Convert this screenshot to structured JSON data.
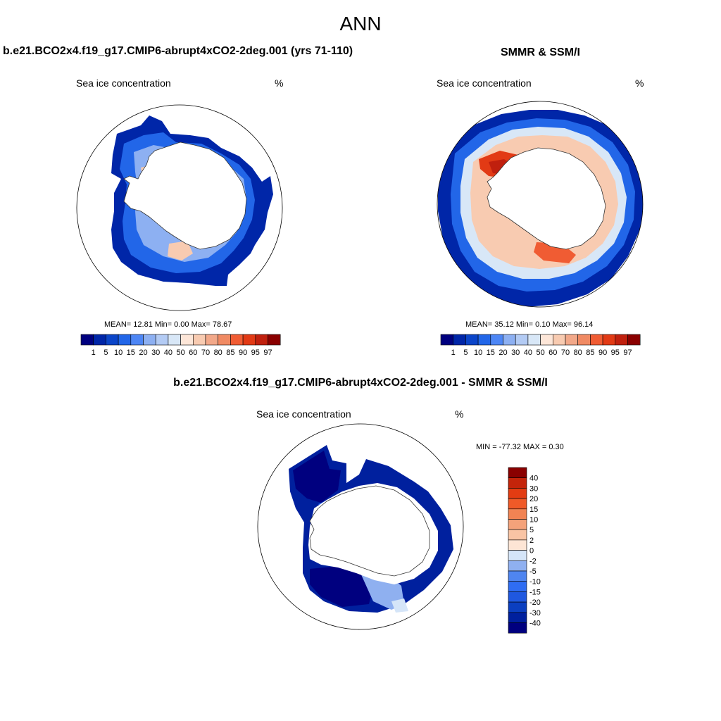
{
  "main_title": "ANN",
  "palette": {
    "seq": [
      "#00007f",
      "#0026a8",
      "#0b45c9",
      "#2266e8",
      "#4d86f5",
      "#8db0f2",
      "#b3cbf4",
      "#d8e7f7",
      "#fde6d8",
      "#f8cbb1",
      "#f2a889",
      "#f08a63",
      "#f05c33",
      "#e23a15",
      "#c0200e",
      "#8a0000"
    ],
    "diff": [
      "#00007f",
      "#00209e",
      "#0b3fc0",
      "#1f58e0",
      "#2f6df3",
      "#4f85f0",
      "#8fb0f0",
      "#d5e5f8",
      "#fde5d5",
      "#f9c4a4",
      "#f4a27a",
      "#f18353",
      "#f05a28",
      "#e33c12",
      "#c4240a",
      "#8a0000"
    ]
  },
  "panels": [
    {
      "id": "model",
      "case_title": "b.e21.BCO2x4.f19_g17.CMIP6-abrupt4xCO2-2deg.001 (yrs 71-110)",
      "variable": "Sea ice concentration",
      "units": "%",
      "stats": {
        "mean_label": "MEAN=",
        "mean": "12.81",
        "min_label": "Min=",
        "min": "0.00",
        "max_label": "Max=",
        "max": "78.67"
      },
      "colorbar_labels": [
        "1",
        "5",
        "10",
        "15",
        "20",
        "30",
        "40",
        "50",
        "60",
        "70",
        "80",
        "85",
        "90",
        "95",
        "97"
      ]
    },
    {
      "id": "obs",
      "case_title": "SMMR & SSM/I",
      "variable": "Sea ice concentration",
      "units": "%",
      "stats": {
        "mean_label": "MEAN=",
        "mean": "35.12",
        "min_label": "Min=",
        "min": "0.10",
        "max_label": "Max=",
        "max": "96.14"
      },
      "colorbar_labels": [
        "1",
        "5",
        "10",
        "15",
        "20",
        "30",
        "40",
        "50",
        "60",
        "70",
        "80",
        "85",
        "90",
        "95",
        "97"
      ]
    },
    {
      "id": "diff",
      "case_title": "b.e21.BCO2x4.f19_g17.CMIP6-abrupt4xCO2-2deg.001 - SMMR & SSM/I",
      "variable": "Sea ice concentration",
      "units": "%",
      "stats_text": "MIN = -77.32 MAX =   0.30",
      "colorbar_labels": [
        "40",
        "30",
        "20",
        "15",
        "10",
        "5",
        "2",
        "0",
        "-2",
        "-5",
        "-10",
        "-15",
        "-20",
        "-30",
        "-40"
      ]
    }
  ]
}
